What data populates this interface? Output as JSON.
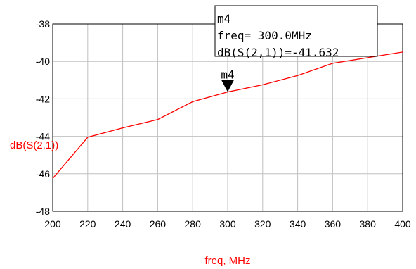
{
  "chart_data": {
    "type": "line",
    "xlabel": "freq, MHz",
    "ylabel": "dB(S(2,1))",
    "xlim": [
      200,
      400
    ],
    "ylim": [
      -48,
      -38
    ],
    "x_ticks": [
      "200",
      "220",
      "240",
      "260",
      "280",
      "300",
      "320",
      "340",
      "360",
      "380",
      "400"
    ],
    "y_ticks": [
      "-38",
      "-40",
      "-42",
      "-44",
      "-46",
      "-48"
    ],
    "grid": true,
    "series": [
      {
        "color": "#ff0000",
        "x": [
          200,
          220,
          240,
          260,
          280,
          300,
          320,
          340,
          360,
          380,
          400
        ],
        "y": [
          -46.25,
          -44.05,
          -43.55,
          -43.1,
          -42.15,
          -41.632,
          -41.25,
          -40.75,
          -40.1,
          -39.8,
          -39.5
        ]
      }
    ],
    "marker": {
      "name": "m4",
      "x": 300,
      "y": -41.632,
      "freq_line": "freq= 300.0MHz",
      "value_line": "dB(S(2,1))=-41.632"
    }
  },
  "colors": {
    "series": "#ff0000",
    "axis_label": "#ff0000",
    "grid": "#c0c0c0",
    "frame": "#000000"
  }
}
